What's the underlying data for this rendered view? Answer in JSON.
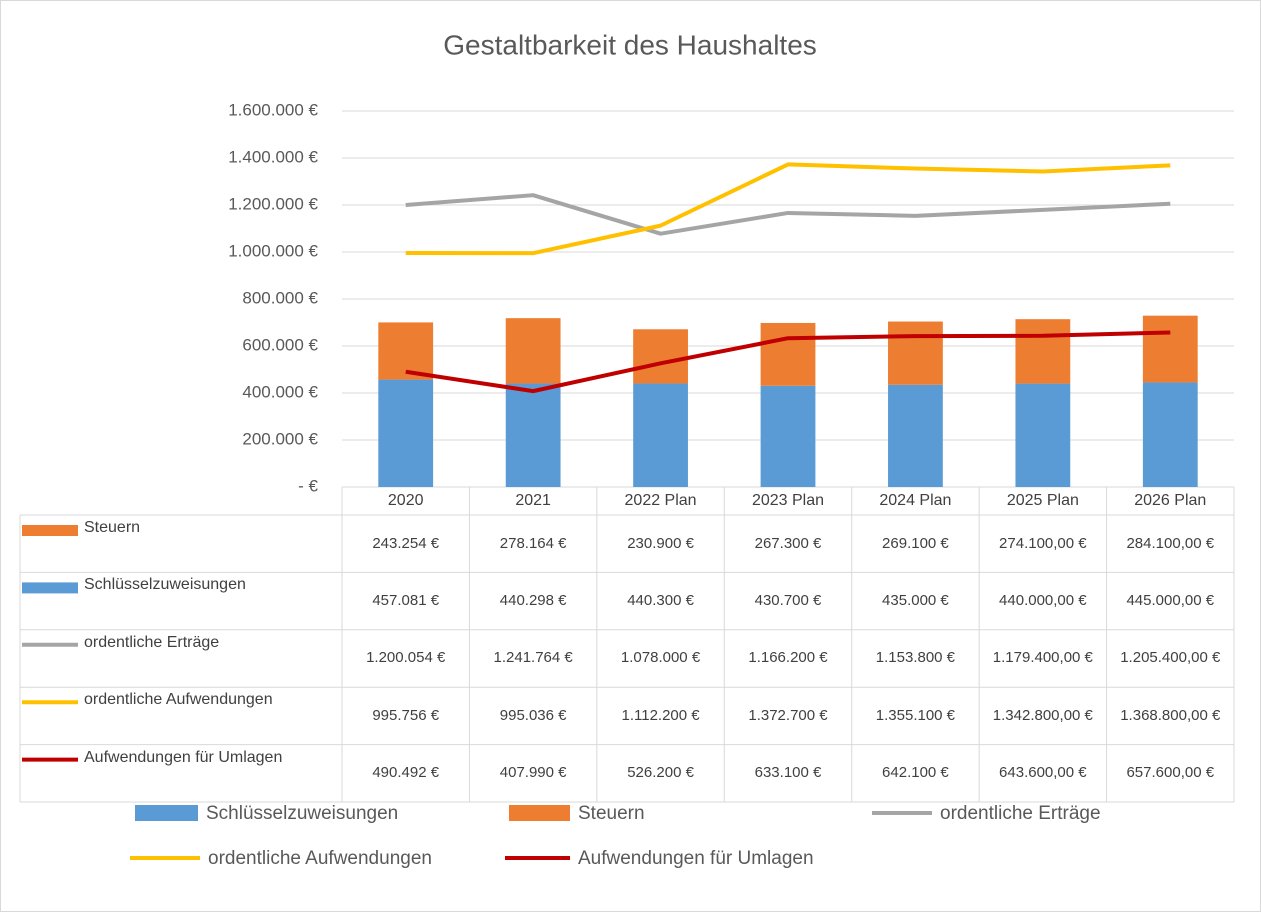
{
  "chart_data": {
    "type": "combo",
    "title": "Gestaltbarkeit des Haushaltes",
    "categories": [
      "2020",
      "2021",
      "2022 Plan",
      "2023 Plan",
      "2024 Plan",
      "2025 Plan",
      "2026 Plan"
    ],
    "stacked": true,
    "grid": true,
    "data_table": true,
    "legend": "bottom",
    "ylim": [
      0,
      1600000
    ],
    "yticks": [
      {
        "value": 0,
        "label": "- €"
      },
      {
        "value": 200000,
        "label": "200.000 €"
      },
      {
        "value": 400000,
        "label": "400.000 €"
      },
      {
        "value": 600000,
        "label": "600.000 €"
      },
      {
        "value": 800000,
        "label": "800.000 €"
      },
      {
        "value": 1000000,
        "label": "1.000.000 €"
      },
      {
        "value": 1200000,
        "label": "1.200.000 €"
      },
      {
        "value": 1400000,
        "label": "1.400.000 €"
      },
      {
        "value": 1600000,
        "label": "1.600.000 €"
      }
    ],
    "series": [
      {
        "name": "Steuern",
        "type": "bar",
        "color": "#ed7d31",
        "values": [
          243254,
          278164,
          230900,
          267300,
          269100,
          274100,
          284100
        ],
        "value_labels": [
          "243.254 €",
          "278.164 €",
          "230.900 €",
          "267.300 €",
          "269.100 €",
          "274.100,00 €",
          "284.100,00 €"
        ]
      },
      {
        "name": "Schlüsselzuweisungen",
        "type": "bar",
        "color": "#5b9bd5",
        "values": [
          457081,
          440298,
          440300,
          430700,
          435000,
          440000,
          445000
        ],
        "value_labels": [
          "457.081 €",
          "440.298 €",
          "440.300 €",
          "430.700 €",
          "435.000 €",
          "440.000,00 €",
          "445.000,00 €"
        ]
      },
      {
        "name": "ordentliche Erträge",
        "type": "line",
        "color": "#a5a5a5",
        "values": [
          1200054,
          1241764,
          1078000,
          1166200,
          1153800,
          1179400,
          1205400
        ],
        "value_labels": [
          "1.200.054 €",
          "1.241.764 €",
          "1.078.000 €",
          "1.166.200 €",
          "1.153.800 €",
          "1.179.400,00 €",
          "1.205.400,00 €"
        ]
      },
      {
        "name": "ordentliche Aufwendungen",
        "type": "line",
        "color": "#ffc000",
        "values": [
          995756,
          995036,
          1112200,
          1372700,
          1355100,
          1342800,
          1368800
        ],
        "value_labels": [
          "995.756 €",
          "995.036 €",
          "1.112.200 €",
          "1.372.700 €",
          "1.355.100 €",
          "1.342.800,00 €",
          "1.368.800,00 €"
        ]
      },
      {
        "name": "Aufwendungen für Umlagen",
        "type": "line",
        "color": "#c00000",
        "values": [
          490492,
          407990,
          526200,
          633100,
          642100,
          643600,
          657600
        ],
        "value_labels": [
          "490.492 €",
          "407.990 €",
          "526.200 €",
          "633.100 €",
          "642.100 €",
          "643.600,00 €",
          "657.600,00 €"
        ]
      }
    ]
  }
}
